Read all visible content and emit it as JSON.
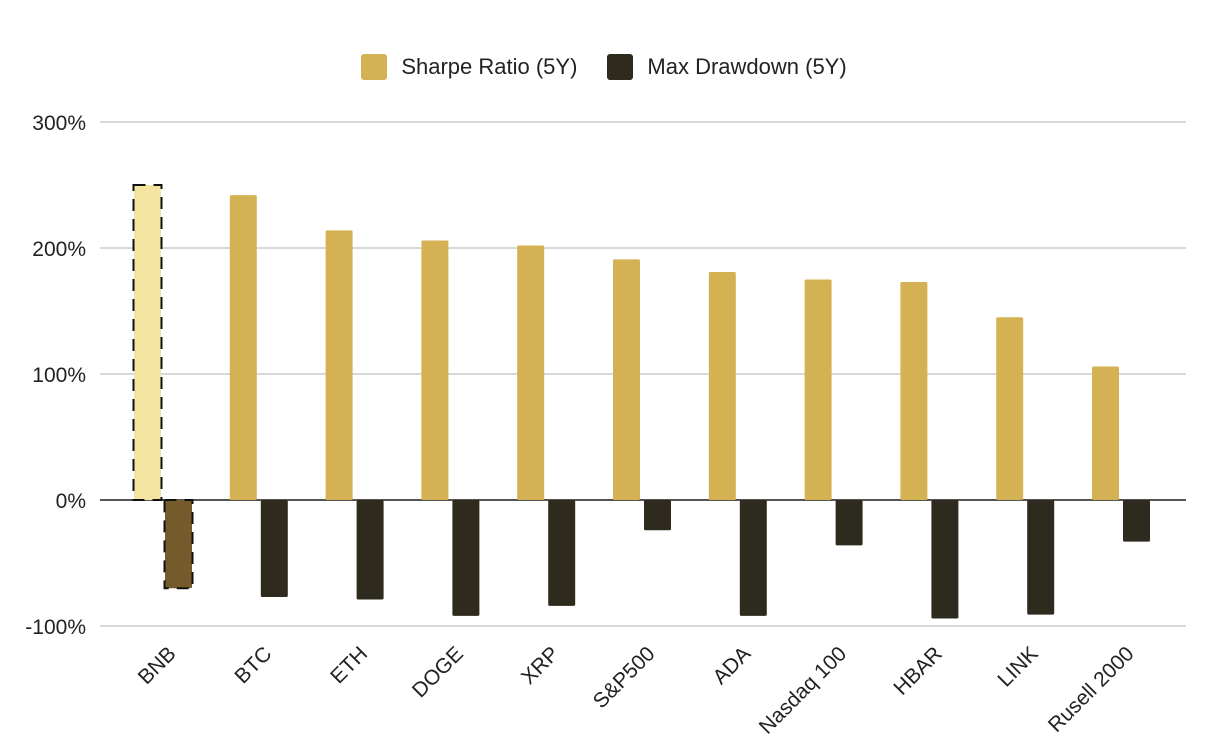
{
  "chart_data": {
    "type": "bar",
    "categories": [
      "BNB",
      "BTC",
      "ETH",
      "DOGE",
      "XRP",
      "S&P500",
      "ADA",
      "Nasdaq 100",
      "HBAR",
      "LINK",
      "Rusell 2000"
    ],
    "series": [
      {
        "name": "Sharpe Ratio (5Y)",
        "values": [
          250,
          242,
          214,
          206,
          202,
          191,
          181,
          175,
          173,
          145,
          106
        ],
        "color": "#d4b254",
        "highlight_color": "#f3e4a2"
      },
      {
        "name": "Max Drawdown (5Y)",
        "values": [
          -70,
          -77,
          -79,
          -92,
          -84,
          -24,
          -92,
          -36,
          -94,
          -91,
          -33
        ],
        "color": "#2e2a1d",
        "highlight_color": "#755b2b"
      }
    ],
    "y_ticks": [
      "300%",
      "200%",
      "100%",
      "0%",
      "-100%"
    ],
    "y_tick_values": [
      300,
      200,
      100,
      0,
      -100
    ],
    "ylim": [
      -100,
      300
    ],
    "highlighted_category": "BNB",
    "grid": true,
    "legend_position": "top-center"
  }
}
